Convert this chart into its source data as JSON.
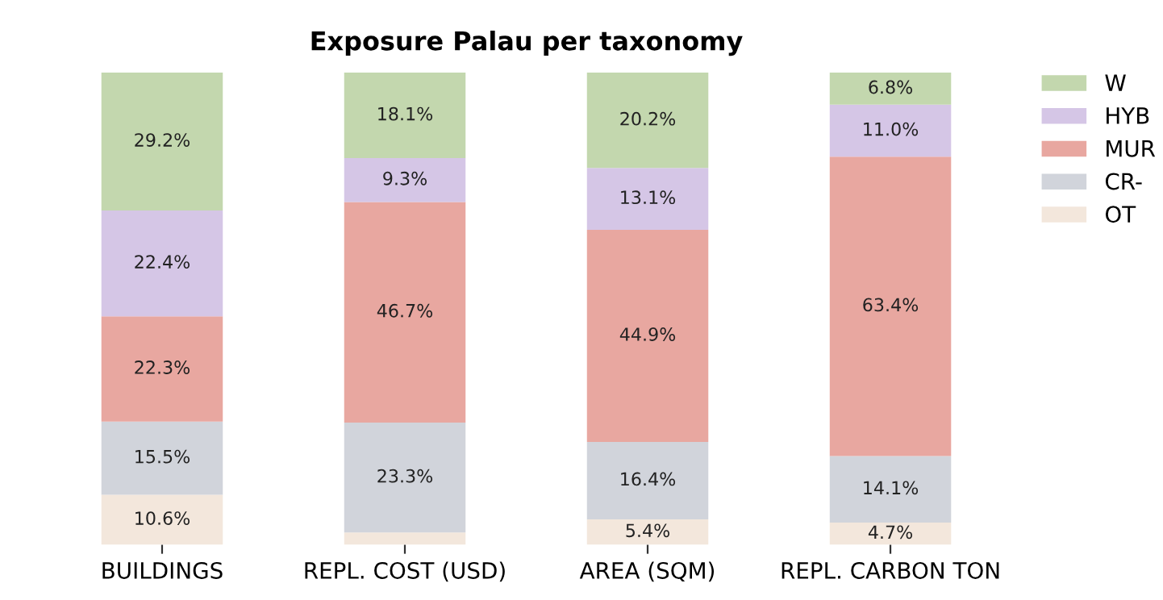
{
  "chart_data": {
    "type": "bar",
    "title": "Exposure Palau per taxonomy",
    "stacked": true,
    "categories": [
      "BUILDINGS",
      "REPL. COST (USD)",
      "AREA (SQM)",
      "REPL. CARBON TON"
    ],
    "series": [
      {
        "name": "OT",
        "color": "#f3e7dc",
        "values": [
          10.6,
          2.6,
          5.4,
          4.7
        ],
        "value_labels": [
          "10.6%",
          null,
          "5.4%",
          "4.7%"
        ]
      },
      {
        "name": "CR-",
        "color": "#d1d4db",
        "values": [
          15.5,
          23.3,
          16.4,
          14.1
        ],
        "value_labels": [
          "15.5%",
          "23.3%",
          "16.4%",
          "14.1%"
        ]
      },
      {
        "name": "MUR",
        "color": "#e8a7a0",
        "values": [
          22.3,
          46.7,
          44.9,
          63.4
        ],
        "value_labels": [
          "22.3%",
          "46.7%",
          "44.9%",
          "63.4%"
        ]
      },
      {
        "name": "HYB",
        "color": "#d5c6e6",
        "values": [
          22.4,
          9.3,
          13.1,
          11.0
        ],
        "value_labels": [
          "22.4%",
          "9.3%",
          "13.1%",
          "11.0%"
        ]
      },
      {
        "name": "W",
        "color": "#c3d7ae",
        "values": [
          29.2,
          18.1,
          20.2,
          6.8
        ],
        "value_labels": [
          "29.2%",
          "18.1%",
          "20.2%",
          "6.8%"
        ]
      }
    ],
    "ylim": [
      0,
      100
    ],
    "tick_labels": "x",
    "grid": false,
    "legend": "top right"
  }
}
